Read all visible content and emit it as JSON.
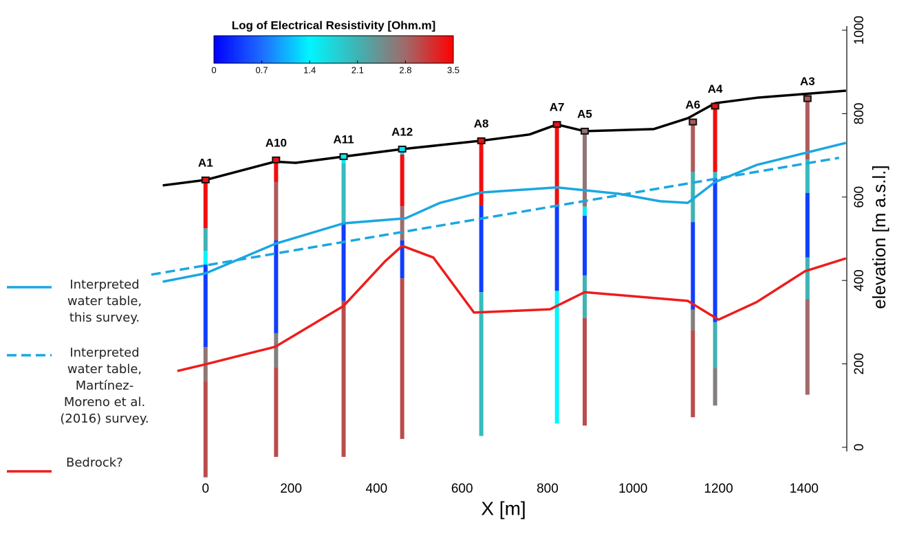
{
  "chart_data": {
    "type": "borehole-section",
    "xlabel": "X [m]",
    "ylabel": "elevation [m a.s.l.]",
    "xlim": [
      -130,
      1500
    ],
    "ylim": [
      -90,
      1000
    ],
    "xticks": [
      0,
      200,
      400,
      600,
      800,
      1000,
      1200,
      1400
    ],
    "yticks": [
      0,
      200,
      400,
      600,
      800,
      1000
    ],
    "colorbar": {
      "title": "Log of Electrical Resistivity [Ohm.m]",
      "lim": [
        0,
        3.5
      ],
      "ticks": [
        0,
        0.7,
        1.4,
        2.1,
        2.8,
        3.5
      ],
      "colormap": [
        [
          0,
          "#0000ff"
        ],
        [
          0.7,
          "#1e6cff"
        ],
        [
          1.4,
          "#00f5ff"
        ],
        [
          2.1,
          "#3fb3b3"
        ],
        [
          2.8,
          "#a06a6a"
        ],
        [
          3.5,
          "#ff0000"
        ]
      ]
    },
    "surface": {
      "color": "#000000",
      "x": [
        -100,
        0,
        163,
        211,
        323,
        460,
        645,
        758,
        822,
        887,
        1048,
        1128,
        1192,
        1289,
        1498
      ],
      "y": [
        628,
        641,
        685,
        682,
        697,
        715,
        735,
        750,
        774,
        758,
        763,
        789,
        825,
        838,
        855
      ]
    },
    "series": [
      {
        "name": "Interpreted water table, this survey.",
        "color": "#1aa7e1",
        "dashed": false,
        "x": [
          -100,
          0,
          163,
          323,
          468,
          548,
          645,
          822,
          966,
          1063,
          1128,
          1192,
          1289,
          1498
        ],
        "y": [
          397,
          417,
          488,
          537,
          549,
          586,
          611,
          623,
          608,
          590,
          586,
          636,
          677,
          730
        ]
      },
      {
        "name": "Interpreted water table, Martínez-Moreno et al. (2016) survey.",
        "color": "#1aa7e1",
        "dashed": true,
        "x": [
          -127,
          1482
        ],
        "y": [
          414,
          694
        ]
      },
      {
        "name": "Bedrock?",
        "color": "#ee1c1c",
        "dashed": false,
        "x": [
          -66,
          0,
          163,
          323,
          420,
          460,
          533,
          628,
          806,
          887,
          1128,
          1200,
          1289,
          1402,
          1498
        ],
        "y": [
          183,
          199,
          241,
          339,
          446,
          483,
          455,
          323,
          331,
          372,
          351,
          306,
          348,
          422,
          453
        ]
      }
    ],
    "wells": [
      {
        "name": "A1",
        "x": 0,
        "top": 641,
        "segments": [
          {
            "from": 641,
            "to": 525,
            "value": 3.4
          },
          {
            "from": 525,
            "to": 471,
            "value": 2.1
          },
          {
            "from": 471,
            "to": 438,
            "value": 1.4
          },
          {
            "from": 438,
            "to": 240,
            "value": 0.4
          },
          {
            "from": 240,
            "to": 158,
            "value": 2.7
          },
          {
            "from": 158,
            "to": -72,
            "value": 3.0
          }
        ]
      },
      {
        "name": "A10",
        "x": 165,
        "top": 689,
        "segments": [
          {
            "from": 689,
            "to": 636,
            "value": 3.4
          },
          {
            "from": 636,
            "to": 496,
            "value": 2.9
          },
          {
            "from": 496,
            "to": 273,
            "value": 0.4
          },
          {
            "from": 273,
            "to": 191,
            "value": 2.6
          },
          {
            "from": 191,
            "to": -23,
            "value": 3.0
          }
        ]
      },
      {
        "name": "A11",
        "x": 323,
        "top": 697,
        "segments": [
          {
            "from": 697,
            "to": 681,
            "value": 1.5
          },
          {
            "from": 681,
            "to": 537,
            "value": 2.0
          },
          {
            "from": 537,
            "to": 351,
            "value": 0.4
          },
          {
            "from": 351,
            "to": -23,
            "value": 3.0
          }
        ]
      },
      {
        "name": "A12",
        "x": 460,
        "top": 715,
        "segments": [
          {
            "from": 715,
            "to": 702,
            "value": 1.3
          },
          {
            "from": 702,
            "to": 578,
            "value": 3.4
          },
          {
            "from": 578,
            "to": 496,
            "value": 2.8
          },
          {
            "from": 496,
            "to": 405,
            "value": 0.4
          },
          {
            "from": 405,
            "to": 20,
            "value": 3.0
          }
        ]
      },
      {
        "name": "A8",
        "x": 645,
        "top": 735,
        "segments": [
          {
            "from": 735,
            "to": 580,
            "value": 3.4
          },
          {
            "from": 580,
            "to": 372,
            "value": 0.4
          },
          {
            "from": 372,
            "to": 27,
            "value": 2.0
          }
        ]
      },
      {
        "name": "A7",
        "x": 822,
        "top": 774,
        "segments": [
          {
            "from": 774,
            "to": 578,
            "value": 3.4
          },
          {
            "from": 578,
            "to": 375,
            "value": 0.4
          },
          {
            "from": 375,
            "to": 57,
            "value": 1.4
          }
        ]
      },
      {
        "name": "A5",
        "x": 887,
        "top": 758,
        "segments": [
          {
            "from": 758,
            "to": 577,
            "value": 2.7
          },
          {
            "from": 577,
            "to": 555,
            "value": 1.5
          },
          {
            "from": 555,
            "to": 412,
            "value": 0.4
          },
          {
            "from": 412,
            "to": 310,
            "value": 2.1
          },
          {
            "from": 310,
            "to": 52,
            "value": 3.0
          }
        ]
      },
      {
        "name": "A6",
        "x": 1140,
        "top": 780,
        "segments": [
          {
            "from": 780,
            "to": 660,
            "value": 2.9
          },
          {
            "from": 660,
            "to": 540,
            "value": 2.1
          },
          {
            "from": 540,
            "to": 330,
            "value": 0.4
          },
          {
            "from": 330,
            "to": 280,
            "value": 2.6
          },
          {
            "from": 280,
            "to": 72,
            "value": 3.0
          }
        ]
      },
      {
        "name": "A4",
        "x": 1192,
        "top": 818,
        "segments": [
          {
            "from": 818,
            "to": 660,
            "value": 3.4
          },
          {
            "from": 660,
            "to": 645,
            "value": 2.0
          },
          {
            "from": 645,
            "to": 300,
            "value": 0.4
          },
          {
            "from": 300,
            "to": 190,
            "value": 2.1
          },
          {
            "from": 190,
            "to": 100,
            "value": 2.6
          }
        ]
      },
      {
        "name": "A3",
        "x": 1408,
        "top": 836,
        "segments": [
          {
            "from": 836,
            "to": 690,
            "value": 2.9
          },
          {
            "from": 690,
            "to": 610,
            "value": 2.0
          },
          {
            "from": 610,
            "to": 455,
            "value": 0.4
          },
          {
            "from": 455,
            "to": 355,
            "value": 2.1
          },
          {
            "from": 355,
            "to": 126,
            "value": 2.8
          }
        ]
      }
    ]
  }
}
